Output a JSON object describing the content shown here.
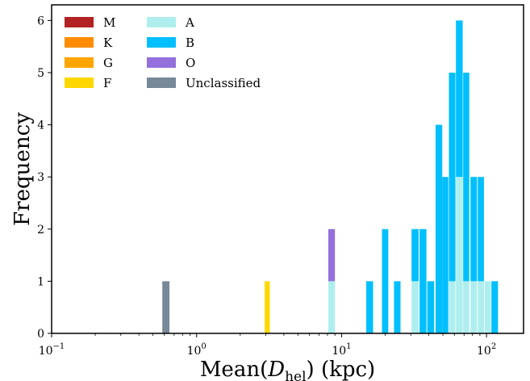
{
  "chart_data": {
    "type": "bar",
    "subtype": "stacked-histogram",
    "xscale": "log",
    "xlim": [
      0.1,
      180
    ],
    "ylim": [
      0,
      6.3
    ],
    "xlabel": "Mean(D_hel) (kpc)",
    "xlabel_parts": {
      "prefix": "Mean(",
      "var": "D",
      "sub": "hel",
      "suffix": ") (kpc)"
    },
    "ylabel": "Frequency",
    "x_ticks": [
      {
        "value": 0.1,
        "base": "10",
        "exp": "−1"
      },
      {
        "value": 1,
        "base": "10",
        "exp": "0"
      },
      {
        "value": 10,
        "base": "10",
        "exp": "1"
      },
      {
        "value": 100,
        "base": "10",
        "exp": "2"
      }
    ],
    "y_ticks": [
      0,
      1,
      2,
      3,
      4,
      5,
      6
    ],
    "legend_position": "top-left",
    "series": [
      {
        "name": "M",
        "color": "#b22222",
        "bins": []
      },
      {
        "name": "K",
        "color": "#ff8c00",
        "bins": []
      },
      {
        "name": "G",
        "color": "#ffa500",
        "bins": []
      },
      {
        "name": "F",
        "color": "#ffd700",
        "bins": [
          {
            "x0": 2.95,
            "x1": 3.2,
            "count": 1
          }
        ]
      },
      {
        "name": "A",
        "color": "#afeeee",
        "bins": [
          {
            "x0": 8.1,
            "x1": 9.0,
            "count": 1
          },
          {
            "x0": 30.4,
            "x1": 34.0,
            "count": 1
          },
          {
            "x0": 55.0,
            "x1": 61.0,
            "count": 1
          },
          {
            "x0": 61.5,
            "x1": 68.5,
            "count": 3
          },
          {
            "x0": 69.0,
            "x1": 76.0,
            "count": 1
          },
          {
            "x0": 77.5,
            "x1": 86.0,
            "count": 1
          },
          {
            "x0": 87.0,
            "x1": 96.0,
            "count": 1
          },
          {
            "x0": 97.0,
            "x1": 107.0,
            "count": 1
          }
        ]
      },
      {
        "name": "B",
        "color": "#00bfff",
        "bins": [
          {
            "x0": 14.8,
            "x1": 16.5,
            "count": 1
          },
          {
            "x0": 19.0,
            "x1": 21.0,
            "count": 2
          },
          {
            "x0": 23.0,
            "x1": 25.5,
            "count": 1
          },
          {
            "x0": 30.4,
            "x1": 34.0,
            "count": 1
          },
          {
            "x0": 34.5,
            "x1": 38.5,
            "count": 2
          },
          {
            "x0": 39.0,
            "x1": 43.5,
            "count": 1
          },
          {
            "x0": 44.5,
            "x1": 49.5,
            "count": 4
          },
          {
            "x0": 49.5,
            "x1": 54.5,
            "count": 3
          },
          {
            "x0": 55.0,
            "x1": 61.0,
            "count": 4
          },
          {
            "x0": 61.5,
            "x1": 68.5,
            "count": 3
          },
          {
            "x0": 69.0,
            "x1": 76.0,
            "count": 4
          },
          {
            "x0": 77.5,
            "x1": 86.0,
            "count": 2
          },
          {
            "x0": 87.0,
            "x1": 96.0,
            "count": 2
          },
          {
            "x0": 108.0,
            "x1": 120.0,
            "count": 1
          }
        ]
      },
      {
        "name": "O",
        "color": "#9370db",
        "bins": [
          {
            "x0": 8.1,
            "x1": 9.0,
            "count": 1
          }
        ]
      },
      {
        "name": "Unclassified",
        "color": "#778899",
        "bins": [
          {
            "x0": 0.58,
            "x1": 0.65,
            "count": 1
          }
        ]
      }
    ],
    "stack_order": [
      "M",
      "K",
      "G",
      "F",
      "A",
      "B",
      "O",
      "Unclassified"
    ],
    "legend_columns": [
      [
        "M",
        "K",
        "G",
        "F"
      ],
      [
        "A",
        "B",
        "O",
        "Unclassified"
      ]
    ]
  }
}
